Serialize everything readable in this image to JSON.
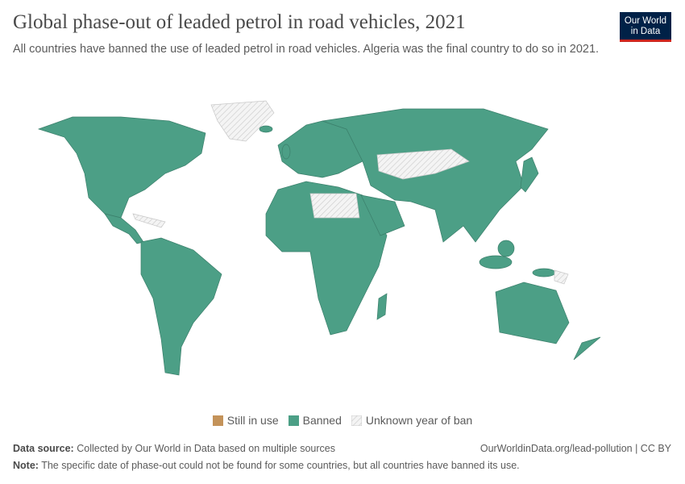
{
  "header": {
    "title": "Global phase-out of leaded petrol in road vehicles, 2021",
    "subtitle": "All countries have banned the use of leaded petrol in road vehicles. Algeria was the final country to do so in 2021.",
    "logo": "Our World in Data"
  },
  "colors": {
    "still_in_use": "#c4935a",
    "banned": "#4c9f86",
    "unknown": "#eeeeee",
    "border": "#2f6b59"
  },
  "legend": {
    "items": [
      {
        "label": "Still in use",
        "color": "#c4935a"
      },
      {
        "label": "Banned",
        "color": "#4c9f86"
      },
      {
        "label": "Unknown year of ban",
        "color": "hatched"
      }
    ]
  },
  "footer": {
    "source_label": "Data source:",
    "source_text": "Collected by Our World in Data based on multiple sources",
    "credit": "OurWorldinData.org/lead-pollution | CC BY",
    "note_label": "Note:",
    "note_text": "The specific date of phase-out could not be found for some countries, but all countries have banned its use."
  }
}
